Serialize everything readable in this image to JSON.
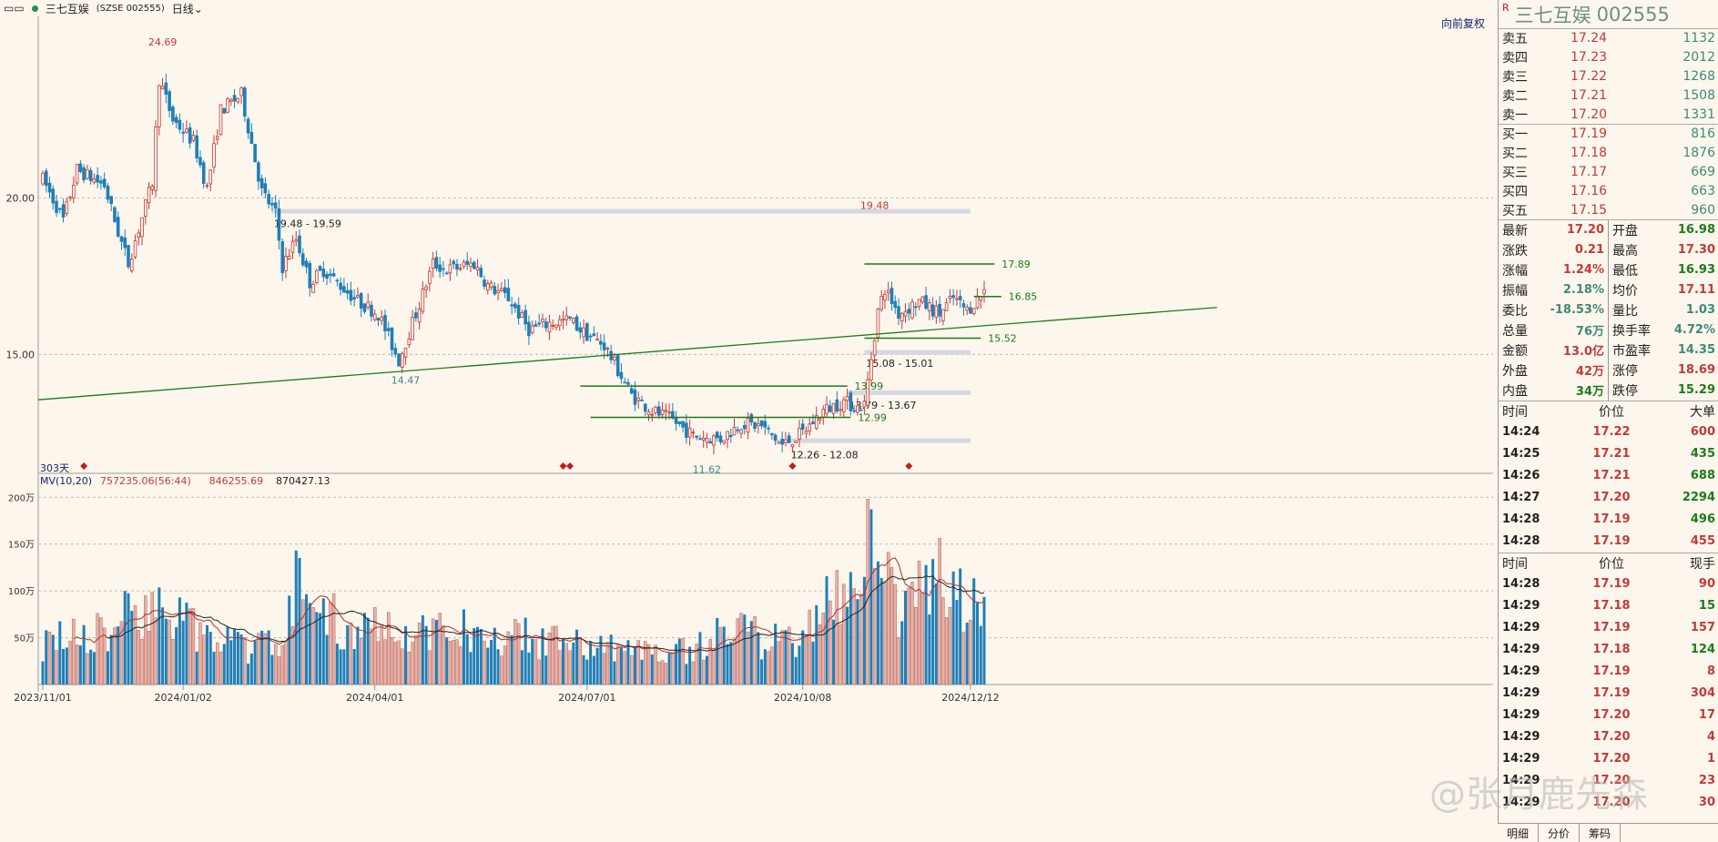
{
  "toolbar": {
    "stock": "三七互娱",
    "code_tag": "(SZSE 002555)",
    "period": "日线"
  },
  "fuquan_label": "向前复权",
  "right_panel": {
    "title_name": "三七互娱",
    "title_code": "002555",
    "title_mark": "R",
    "order_book": [
      {
        "label": "卖五",
        "price": "17.24",
        "vol": "1132"
      },
      {
        "label": "卖四",
        "price": "17.23",
        "vol": "2012"
      },
      {
        "label": "卖三",
        "price": "17.22",
        "vol": "1268"
      },
      {
        "label": "卖二",
        "price": "17.21",
        "vol": "1508"
      },
      {
        "label": "卖一",
        "price": "17.20",
        "vol": "1331"
      },
      {
        "label": "买一",
        "price": "17.19",
        "vol": "816"
      },
      {
        "label": "买二",
        "price": "17.18",
        "vol": "1876"
      },
      {
        "label": "买三",
        "price": "17.17",
        "vol": "669"
      },
      {
        "label": "买四",
        "price": "17.16",
        "vol": "663"
      },
      {
        "label": "买五",
        "price": "17.15",
        "vol": "960"
      }
    ],
    "stats": [
      {
        "k": "最新",
        "v": "17.20",
        "c": "red"
      },
      {
        "k": "开盘",
        "v": "16.98",
        "c": "green"
      },
      {
        "k": "涨跌",
        "v": "0.21",
        "c": "red"
      },
      {
        "k": "最高",
        "v": "17.30",
        "c": "red"
      },
      {
        "k": "涨幅",
        "v": "1.24%",
        "c": "red"
      },
      {
        "k": "最低",
        "v": "16.93",
        "c": "green"
      },
      {
        "k": "振幅",
        "v": "2.18%",
        "c": "teal"
      },
      {
        "k": "均价",
        "v": "17.11",
        "c": "red"
      },
      {
        "k": "委比",
        "v": "-18.53%",
        "c": "teal"
      },
      {
        "k": "量比",
        "v": "1.03",
        "c": "teal"
      },
      {
        "k": "总量",
        "v": "76万",
        "c": "teal"
      },
      {
        "k": "换手率",
        "v": "4.72%",
        "c": "teal"
      },
      {
        "k": "金额",
        "v": "13.0亿",
        "c": "red"
      },
      {
        "k": "市盈率",
        "v": "14.35",
        "c": "teal"
      },
      {
        "k": "外盘",
        "v": "42万",
        "c": "red"
      },
      {
        "k": "涨停",
        "v": "18.69",
        "c": "red"
      },
      {
        "k": "内盘",
        "v": "34万",
        "c": "green"
      },
      {
        "k": "跌停",
        "v": "15.29",
        "c": "green"
      }
    ],
    "big_head": [
      "时间",
      "价位",
      "大单"
    ],
    "big_trades": [
      {
        "t": "14:24",
        "p": "17.22",
        "q": "600",
        "c": "red"
      },
      {
        "t": "14:25",
        "p": "17.21",
        "q": "435",
        "c": "green"
      },
      {
        "t": "14:26",
        "p": "17.21",
        "q": "688",
        "c": "green"
      },
      {
        "t": "14:27",
        "p": "17.20",
        "q": "2294",
        "c": "green"
      },
      {
        "t": "14:28",
        "p": "17.19",
        "q": "496",
        "c": "green"
      },
      {
        "t": "14:28",
        "p": "17.19",
        "q": "455",
        "c": "red"
      }
    ],
    "tick_head": [
      "时间",
      "价位",
      "现手"
    ],
    "ticks": [
      {
        "t": "14:28",
        "p": "17.19",
        "q": "90",
        "c": "red"
      },
      {
        "t": "14:29",
        "p": "17.18",
        "q": "15",
        "c": "green"
      },
      {
        "t": "14:29",
        "p": "17.19",
        "q": "157",
        "c": "red"
      },
      {
        "t": "14:29",
        "p": "17.18",
        "q": "124",
        "c": "green"
      },
      {
        "t": "14:29",
        "p": "17.19",
        "q": "8",
        "c": "red"
      },
      {
        "t": "14:29",
        "p": "17.19",
        "q": "304",
        "c": "red"
      },
      {
        "t": "14:29",
        "p": "17.20",
        "q": "17",
        "c": "red"
      },
      {
        "t": "14:29",
        "p": "17.20",
        "q": "4",
        "c": "red"
      },
      {
        "t": "14:29",
        "p": "17.20",
        "q": "1",
        "c": "red"
      },
      {
        "t": "14:29",
        "p": "17.20",
        "q": "23",
        "c": "red"
      },
      {
        "t": "14:29",
        "p": "17.20",
        "q": "30",
        "c": "red"
      }
    ],
    "tabs": [
      "明细",
      "分价",
      "筹码"
    ]
  },
  "watermark": "@张月鹿先森",
  "chart_data": {
    "type": "candlestick",
    "price_axis": {
      "ticks": [
        15.0,
        20.0
      ],
      "tick_labels": [
        "15.00",
        "20.00"
      ],
      "range": [
        11.2,
        25.8
      ]
    },
    "period_label": "303天",
    "x_labels": [
      "2023/11/01",
      "2024/01/02",
      "2024/04/01",
      "2024/07/01",
      "2024/10/08",
      "2024/12/12"
    ],
    "x_index": [
      0,
      41,
      97,
      159,
      222,
      271
    ],
    "bar_count": 276,
    "anchors": [
      [
        0,
        20.6
      ],
      [
        6,
        19.3
      ],
      [
        10,
        20.9
      ],
      [
        18,
        20.4
      ],
      [
        22,
        18.9
      ],
      [
        25,
        17.9
      ],
      [
        28,
        19.0
      ],
      [
        32,
        20.5
      ],
      [
        34,
        23.8
      ],
      [
        38,
        22.5
      ],
      [
        44,
        21.8
      ],
      [
        48,
        20.3
      ],
      [
        52,
        22.8
      ],
      [
        58,
        23.3
      ],
      [
        64,
        20.2
      ],
      [
        68,
        19.5
      ],
      [
        70,
        17.8
      ],
      [
        74,
        18.7
      ],
      [
        78,
        17.3
      ],
      [
        82,
        17.7
      ],
      [
        86,
        17.3
      ],
      [
        92,
        16.7
      ],
      [
        98,
        16.3
      ],
      [
        104,
        14.8
      ],
      [
        110,
        16.6
      ],
      [
        114,
        17.9
      ],
      [
        118,
        17.7
      ],
      [
        126,
        17.9
      ],
      [
        130,
        17.2
      ],
      [
        136,
        16.8
      ],
      [
        142,
        15.8
      ],
      [
        148,
        16.0
      ],
      [
        154,
        16.1
      ],
      [
        158,
        15.7
      ],
      [
        164,
        15.3
      ],
      [
        172,
        13.7
      ],
      [
        178,
        13.2
      ],
      [
        184,
        12.9
      ],
      [
        190,
        12.4
      ],
      [
        198,
        12.3
      ],
      [
        204,
        12.8
      ],
      [
        210,
        12.7
      ],
      [
        216,
        12.1
      ],
      [
        222,
        12.5
      ],
      [
        228,
        13.2
      ],
      [
        234,
        13.5
      ],
      [
        238,
        13.3
      ],
      [
        240,
        13.4
      ],
      [
        244,
        16.4
      ],
      [
        246,
        17.1
      ],
      [
        250,
        16.3
      ],
      [
        256,
        16.7
      ],
      [
        262,
        16.3
      ],
      [
        266,
        16.8
      ],
      [
        270,
        16.4
      ],
      [
        274,
        16.9
      ],
      [
        276,
        17.2
      ]
    ],
    "price_labels": [
      {
        "text": "24.69",
        "x": 35,
        "y": 24.69,
        "c": "red"
      },
      {
        "text": "14.47",
        "x": 106,
        "y": 14.47,
        "c": "teal"
      },
      {
        "text": "11.62",
        "x": 194,
        "y": 11.62,
        "c": "teal"
      },
      {
        "text": "19.48",
        "x": 243,
        "y": 19.48,
        "c": "red"
      }
    ],
    "support_zones": [
      {
        "label": "19.48 - 19.59",
        "x1": 67,
        "x2": 271,
        "y1": 19.48,
        "y2": 19.59
      },
      {
        "label": "15.08 - 15.01",
        "x1": 240,
        "x2": 271,
        "y1": 15.08,
        "y2": 15.01
      },
      {
        "label": "13.79 - 13.67",
        "x1": 235,
        "x2": 271,
        "y1": 13.79,
        "y2": 13.67
      },
      {
        "label": "12.26 - 12.08",
        "x1": 218,
        "x2": 271,
        "y1": 12.26,
        "y2": 12.08
      }
    ],
    "h_lines": [
      {
        "label": "17.89",
        "x1": 240,
        "x2": 278,
        "y": 17.89
      },
      {
        "label": "16.85",
        "x1": 272,
        "x2": 280,
        "y": 16.85
      },
      {
        "label": "15.52",
        "x1": 240,
        "x2": 274,
        "y": 15.52
      },
      {
        "label": "13.99",
        "x1": 157,
        "x2": 235,
        "y": 13.99
      },
      {
        "label": "12.99",
        "x1": 160,
        "x2": 236,
        "y": 12.99
      }
    ],
    "trend_line": {
      "x1": 0,
      "y1": 13.55,
      "x2": 343,
      "y2": 16.5
    },
    "signal_markers": [
      12,
      152,
      154,
      219,
      253
    ],
    "volume": {
      "indicator": "MV(10,20)",
      "values_text": [
        "757235.06(56:44)",
        "846255.69",
        "870427.13"
      ],
      "ticks": [
        "50万",
        "100万",
        "150万",
        "200万"
      ],
      "tick_values": [
        50,
        100,
        150,
        200
      ],
      "range": [
        0,
        210
      ],
      "unit": "万",
      "anchors": [
        [
          0,
          45
        ],
        [
          20,
          55
        ],
        [
          30,
          90
        ],
        [
          38,
          70
        ],
        [
          48,
          50
        ],
        [
          60,
          40
        ],
        [
          70,
          45
        ],
        [
          72,
          110
        ],
        [
          80,
          75
        ],
        [
          90,
          60
        ],
        [
          100,
          65
        ],
        [
          110,
          55
        ],
        [
          120,
          60
        ],
        [
          130,
          55
        ],
        [
          140,
          50
        ],
        [
          150,
          45
        ],
        [
          160,
          45
        ],
        [
          170,
          35
        ],
        [
          180,
          38
        ],
        [
          190,
          35
        ],
        [
          200,
          60
        ],
        [
          210,
          48
        ],
        [
          220,
          50
        ],
        [
          226,
          70
        ],
        [
          230,
          90
        ],
        [
          236,
          110
        ],
        [
          240,
          150
        ],
        [
          244,
          120
        ],
        [
          250,
          85
        ],
        [
          256,
          95
        ],
        [
          262,
          120
        ],
        [
          266,
          90
        ],
        [
          270,
          85
        ],
        [
          276,
          70
        ]
      ]
    }
  }
}
